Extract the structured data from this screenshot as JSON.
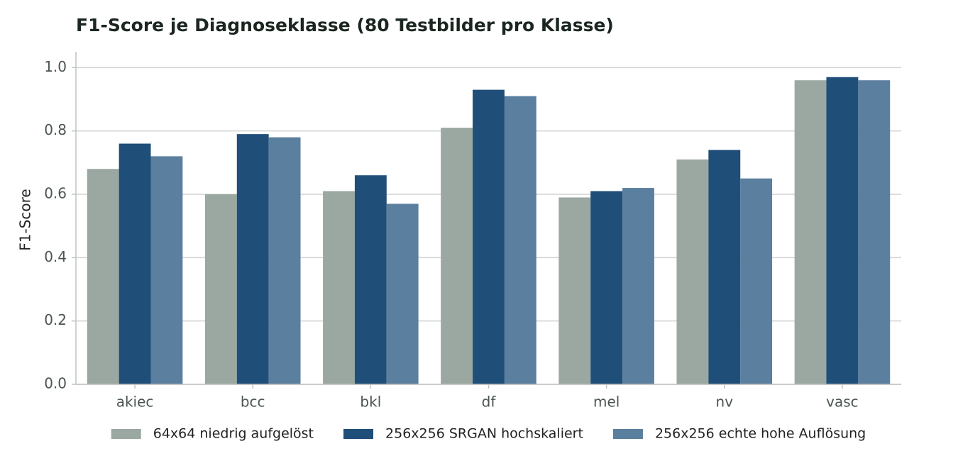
{
  "chart_data": {
    "type": "bar",
    "title": "F1-Score je Diagnoseklasse (80 Testbilder pro Klasse)",
    "y_label": "F1-Score",
    "categories": [
      "akiec",
      "bcc",
      "bkl",
      "df",
      "mel",
      "nv",
      "vasc"
    ],
    "series": [
      {
        "name": "64x64 niedrig aufgelöst",
        "color": "#9aa8a1",
        "values": [
          0.68,
          0.6,
          0.61,
          0.81,
          0.59,
          0.71,
          0.96
        ]
      },
      {
        "name": "256x256 SRGAN hochskaliert",
        "color": "#1f4e79",
        "values": [
          0.76,
          0.79,
          0.66,
          0.93,
          0.61,
          0.74,
          0.97
        ]
      },
      {
        "name": "256x256 echte hohe Auflösung",
        "color": "#5b7f9e",
        "values": [
          0.72,
          0.78,
          0.57,
          0.91,
          0.62,
          0.65,
          0.96
        ]
      }
    ],
    "ylim": [
      0,
      1.05
    ],
    "yticks": [
      {
        "value": 0,
        "label": "0.0"
      },
      0.2,
      0.4,
      0.6,
      0.8,
      {
        "value": 1,
        "label": "1.0"
      }
    ],
    "grid": true,
    "legend": "bottom"
  }
}
